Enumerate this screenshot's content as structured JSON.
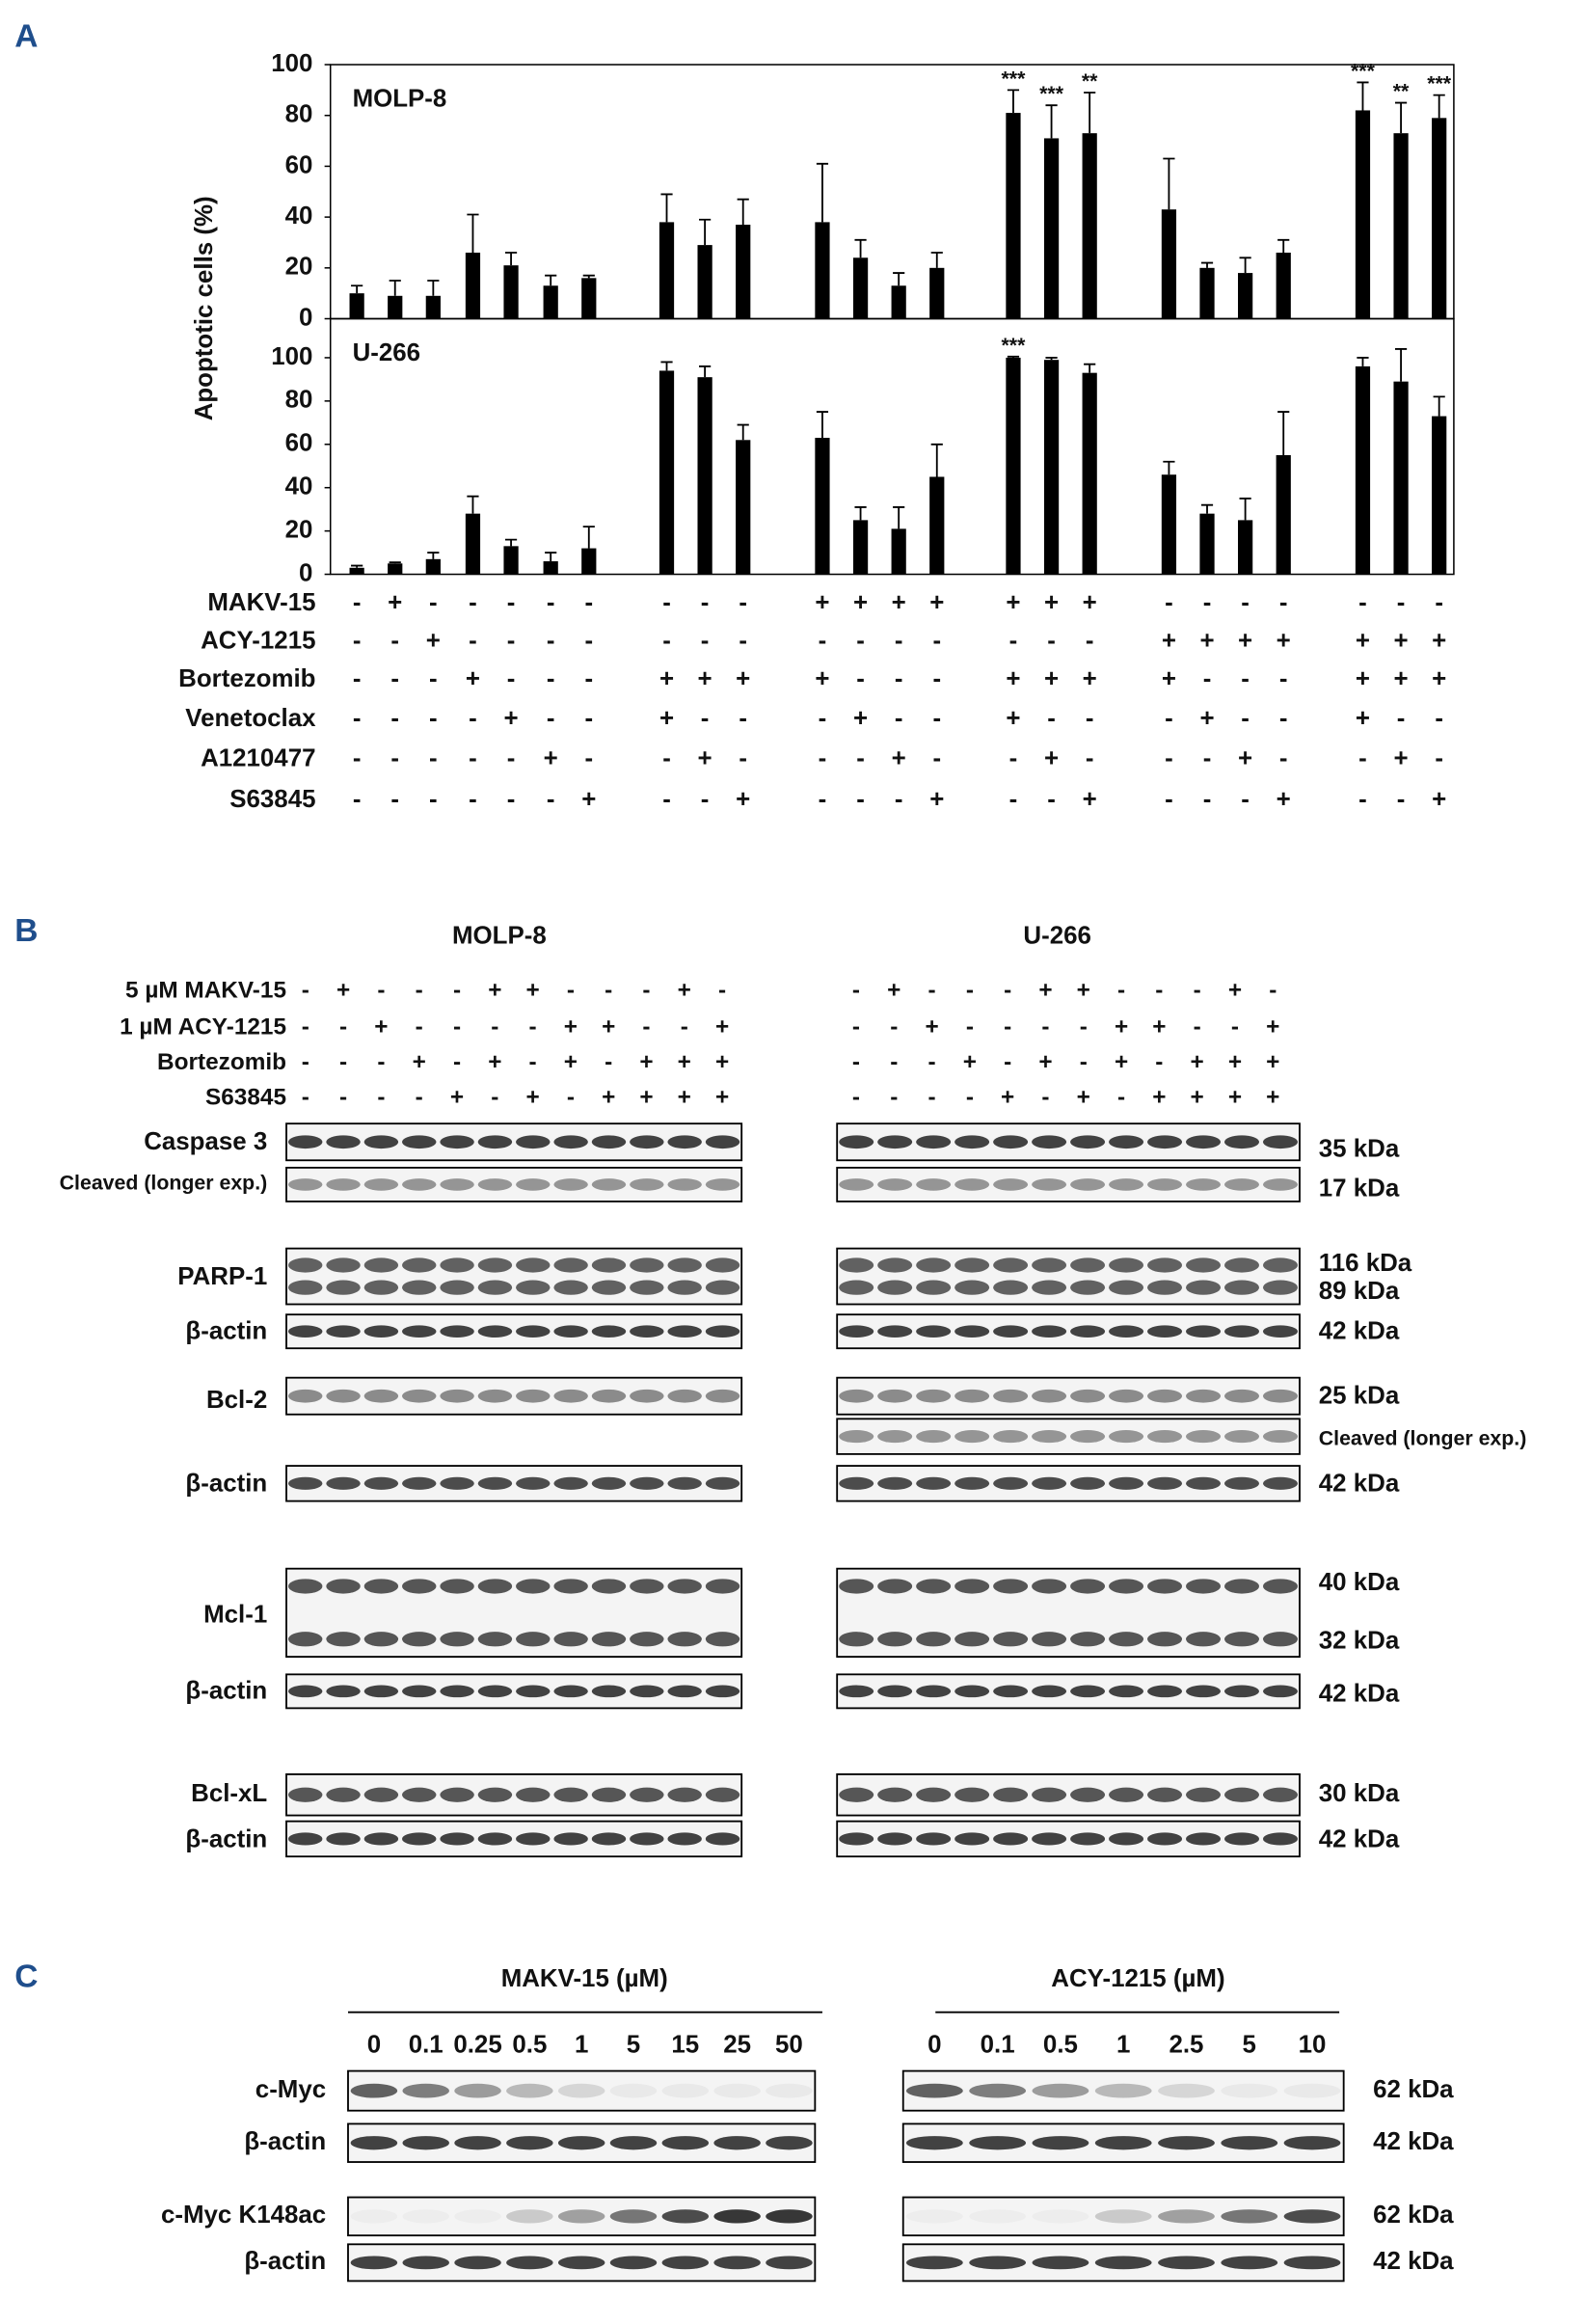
{
  "panel_labels": [
    "A",
    "B",
    "C"
  ],
  "chart_data": [
    {
      "type": "bar",
      "title": "MOLP-8",
      "ylabel": "Apoptotic cells (%)",
      "ylim": [
        0,
        100
      ],
      "yticks": [
        0,
        20,
        40,
        60,
        80,
        100
      ],
      "color": "#000000",
      "values": [
        10,
        9,
        9,
        26,
        21,
        13,
        16,
        38,
        29,
        37,
        38,
        24,
        13,
        20,
        81,
        71,
        73,
        43,
        20,
        18,
        26,
        82,
        73,
        79
      ],
      "errors": [
        3,
        6,
        6,
        15,
        5,
        4,
        1,
        11,
        10,
        10,
        23,
        7,
        5,
        6,
        9,
        13,
        16,
        20,
        2,
        6,
        5,
        11,
        12,
        9
      ],
      "significance": [
        null,
        null,
        null,
        null,
        null,
        null,
        null,
        null,
        null,
        null,
        null,
        null,
        null,
        null,
        "***",
        "***",
        "**",
        null,
        null,
        null,
        null,
        "***",
        "**",
        "***"
      ]
    },
    {
      "type": "bar",
      "title": "U-266",
      "ylim": [
        0,
        118
      ],
      "yticks": [
        0,
        20,
        40,
        60,
        80,
        100
      ],
      "color": "#000000",
      "values": [
        3,
        5,
        7,
        28,
        13,
        6,
        12,
        94,
        91,
        62,
        63,
        25,
        21,
        45,
        100,
        99,
        93,
        46,
        28,
        25,
        55,
        96,
        89,
        73
      ],
      "errors": [
        1,
        0.5,
        3,
        8,
        3,
        4,
        10,
        4,
        5,
        7,
        12,
        6,
        10,
        15,
        0.5,
        1,
        4,
        6,
        4,
        10,
        20,
        4,
        15,
        9
      ],
      "significance": [
        null,
        null,
        null,
        null,
        null,
        null,
        null,
        null,
        null,
        null,
        null,
        null,
        null,
        null,
        "***",
        null,
        null,
        null,
        null,
        null,
        null,
        null,
        null,
        null
      ]
    }
  ],
  "conditions": {
    "names": [
      "MAKV-15",
      "ACY-1215",
      "Bortezomib",
      "Venetoclax",
      "A1210477",
      "S63845"
    ],
    "signs": [
      [
        "-",
        "+",
        "-",
        "-",
        "-",
        "-",
        "-",
        "-",
        "-",
        "-",
        "+",
        "+",
        "+",
        "+",
        "+",
        "+",
        "+",
        "-",
        "-",
        "-",
        "-",
        "-",
        "-",
        "-"
      ],
      [
        "-",
        "-",
        "+",
        "-",
        "-",
        "-",
        "-",
        "-",
        "-",
        "-",
        "-",
        "-",
        "-",
        "-",
        "-",
        "-",
        "-",
        "+",
        "+",
        "+",
        "+",
        "+",
        "+",
        "+"
      ],
      [
        "-",
        "-",
        "-",
        "+",
        "-",
        "-",
        "-",
        "+",
        "+",
        "+",
        "+",
        "-",
        "-",
        "-",
        "+",
        "+",
        "+",
        "+",
        "-",
        "-",
        "-",
        "+",
        "+",
        "+"
      ],
      [
        "-",
        "-",
        "-",
        "-",
        "+",
        "-",
        "-",
        "+",
        "-",
        "-",
        "-",
        "+",
        "-",
        "-",
        "+",
        "-",
        "-",
        "-",
        "+",
        "-",
        "-",
        "+",
        "-",
        "-"
      ],
      [
        "-",
        "-",
        "-",
        "-",
        "-",
        "+",
        "-",
        "-",
        "+",
        "-",
        "-",
        "-",
        "+",
        "-",
        "-",
        "+",
        "-",
        "-",
        "-",
        "+",
        "-",
        "-",
        "+",
        "-"
      ],
      [
        "-",
        "-",
        "-",
        "-",
        "-",
        "-",
        "+",
        "-",
        "-",
        "+",
        "-",
        "-",
        "-",
        "+",
        "-",
        "-",
        "+",
        "-",
        "-",
        "-",
        "+",
        "-",
        "-",
        "+"
      ]
    ]
  },
  "blot": {
    "cell_lines": [
      "MOLP-8",
      "U-266"
    ],
    "conditions": {
      "names": [
        "5 µM MAKV-15",
        "1 µM ACY-1215",
        "Bortezomib",
        "S63845"
      ],
      "signs": [
        [
          "-",
          "+",
          "-",
          "-",
          "-",
          "+",
          "+",
          "-",
          "-",
          "-",
          "+",
          "-"
        ],
        [
          "-",
          "-",
          "+",
          "-",
          "-",
          "-",
          "-",
          "+",
          "+",
          "-",
          "-",
          "+"
        ],
        [
          "-",
          "-",
          "-",
          "+",
          "-",
          "+",
          "-",
          "+",
          "-",
          "+",
          "+",
          "+"
        ],
        [
          "-",
          "-",
          "-",
          "-",
          "+",
          "-",
          "+",
          "-",
          "+",
          "+",
          "+",
          "+"
        ]
      ]
    },
    "rows": [
      {
        "label": "Caspase 3",
        "right": [
          "35 kDa"
        ]
      },
      {
        "label": "Cleaved (longer exp.)",
        "right": [
          "17 kDa"
        ]
      },
      {
        "label": "PARP-1",
        "right": [
          "116 kDa",
          "89 kDa"
        ]
      },
      {
        "label": "β-actin",
        "right": [
          "42 kDa"
        ]
      },
      {
        "label": "Bcl-2",
        "right": [
          "25 kDa"
        ]
      },
      {
        "right": [
          "Cleaved (longer exp.)"
        ]
      },
      {
        "label": "β-actin",
        "right": [
          "42 kDa"
        ]
      },
      {
        "label": "Mcl-1",
        "right": [
          "40 kDa",
          "32 kDa"
        ]
      },
      {
        "label": "β-actin",
        "right": [
          "42 kDa"
        ]
      },
      {
        "label": "Bcl-xL",
        "right": [
          "30 kDa"
        ]
      },
      {
        "label": "β-actin",
        "right": [
          "42 kDa"
        ]
      }
    ]
  },
  "dose": {
    "treatments": [
      "MAKV-15 (µM)",
      "ACY-1215 (µM)"
    ],
    "concentrations": [
      [
        0,
        0.1,
        0.25,
        0.5,
        1,
        5,
        15,
        25,
        50
      ],
      [
        0,
        0.1,
        0.5,
        1,
        2.5,
        5,
        10
      ]
    ],
    "rows": [
      {
        "label": "c-Myc",
        "right": "62 kDa"
      },
      {
        "label": "β-actin",
        "right": "42 kDa"
      },
      {
        "label": "c-Myc K148ac",
        "right": "62 kDa"
      },
      {
        "label": "β-actin",
        "right": "42 kDa"
      }
    ]
  }
}
